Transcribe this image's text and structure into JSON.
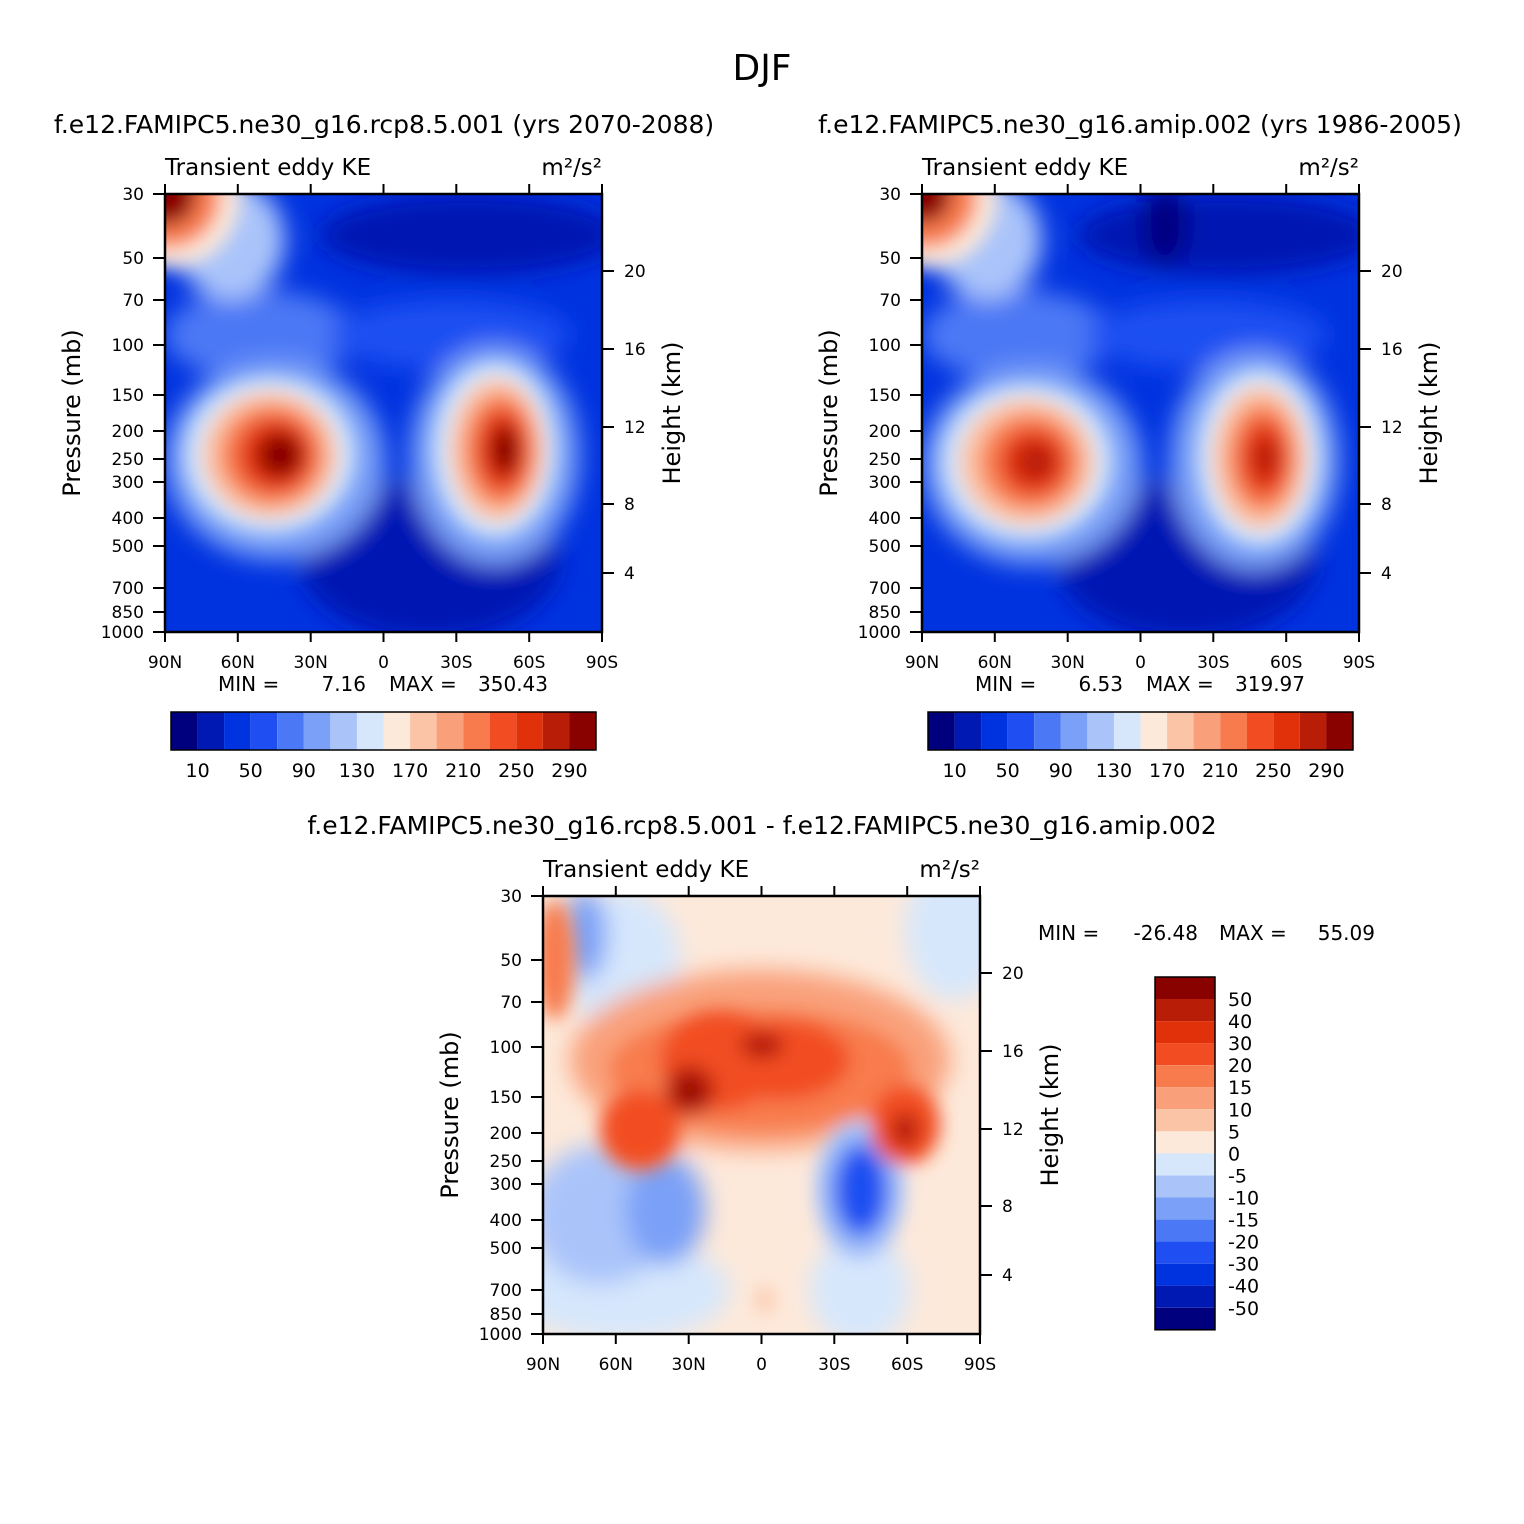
{
  "figure": {
    "title": "DJF"
  },
  "chart_data": [
    {
      "type": "heatmap",
      "title": "f.e12.FAMIPC5.ne30_g16.rcp8.5.001 (yrs 2070-2088)",
      "subtitle": "Transient eddy KE",
      "units": "m²/s²",
      "xlabel": "",
      "ylabel": "Pressure (mb)",
      "ylabel_right": "Height (km)",
      "x_ticks": [
        "90N",
        "60N",
        "30N",
        "0",
        "30S",
        "60S",
        "90S"
      ],
      "x_range": [
        90,
        -90
      ],
      "y_ticks": [
        "30",
        "50",
        "70",
        "100",
        "150",
        "200",
        "250",
        "300",
        "400",
        "500",
        "700",
        "850",
        "1000"
      ],
      "y_range": [
        1000,
        30
      ],
      "y_scale": "log",
      "y_right_ticks": [
        "20",
        "16",
        "12",
        "8",
        "4"
      ],
      "stats": {
        "min": "7.16",
        "max": "350.43"
      },
      "colorbar_labels": [
        "10",
        "50",
        "90",
        "130",
        "170",
        "210",
        "250",
        "290"
      ],
      "colors": [
        "#00007f",
        "#0019b3",
        "#0033e0",
        "#1f4ff2",
        "#4b78f5",
        "#7aa0f7",
        "#aac4fa",
        "#d6e7fc",
        "#fde9da",
        "#fbc4a6",
        "#f9a07a",
        "#f87b4e",
        "#f24d22",
        "#e0310b",
        "#b81d07",
        "#8a0200"
      ],
      "features": [
        {
          "lat": 40,
          "p": 260,
          "value": 340
        },
        {
          "lat": -50,
          "p": 240,
          "value": 330
        },
        {
          "lat": 88,
          "p": 30,
          "value": 320
        }
      ]
    },
    {
      "type": "heatmap",
      "title": "f.e12.FAMIPC5.ne30_g16.amip.002 (yrs 1986-2005)",
      "subtitle": "Transient eddy KE",
      "units": "m²/s²",
      "xlabel": "",
      "ylabel": "Pressure (mb)",
      "ylabel_right": "Height (km)",
      "x_ticks": [
        "90N",
        "60N",
        "30N",
        "0",
        "30S",
        "60S",
        "90S"
      ],
      "x_range": [
        90,
        -90
      ],
      "y_ticks": [
        "30",
        "50",
        "70",
        "100",
        "150",
        "200",
        "250",
        "300",
        "400",
        "500",
        "700",
        "850",
        "1000"
      ],
      "y_range": [
        1000,
        30
      ],
      "y_scale": "log",
      "y_right_ticks": [
        "20",
        "16",
        "12",
        "8",
        "4"
      ],
      "stats": {
        "min": "6.53",
        "max": "319.97"
      },
      "colorbar_labels": [
        "10",
        "50",
        "90",
        "130",
        "170",
        "210",
        "250",
        "290"
      ],
      "colors": [
        "#00007f",
        "#0019b3",
        "#0033e0",
        "#1f4ff2",
        "#4b78f5",
        "#7aa0f7",
        "#aac4fa",
        "#d6e7fc",
        "#fde9da",
        "#fbc4a6",
        "#f9a07a",
        "#f87b4e",
        "#f24d22",
        "#e0310b",
        "#b81d07",
        "#8a0200"
      ],
      "features": [
        {
          "lat": 42,
          "p": 270,
          "value": 310
        },
        {
          "lat": -52,
          "p": 260,
          "value": 300
        },
        {
          "lat": 88,
          "p": 30,
          "value": 300
        }
      ]
    },
    {
      "type": "heatmap",
      "title": "f.e12.FAMIPC5.ne30_g16.rcp8.5.001 - f.e12.FAMIPC5.ne30_g16.amip.002",
      "subtitle": "Transient eddy KE",
      "units": "m²/s²",
      "xlabel": "",
      "ylabel": "Pressure (mb)",
      "ylabel_right": "Height (km)",
      "x_ticks": [
        "90N",
        "60N",
        "30N",
        "0",
        "30S",
        "60S",
        "90S"
      ],
      "x_range": [
        90,
        -90
      ],
      "y_ticks": [
        "30",
        "50",
        "70",
        "100",
        "150",
        "200",
        "250",
        "300",
        "400",
        "500",
        "700",
        "850",
        "1000"
      ],
      "y_range": [
        1000,
        30
      ],
      "y_scale": "log",
      "y_right_ticks": [
        "20",
        "16",
        "12",
        "8",
        "4"
      ],
      "stats": {
        "min": "-26.48",
        "max": "55.09"
      },
      "colorbar_labels": [
        "50",
        "40",
        "30",
        "20",
        "15",
        "10",
        "5",
        "0",
        "-5",
        "-10",
        "-15",
        "-20",
        "-30",
        "-40",
        "-50"
      ],
      "colors": [
        "#8a0200",
        "#b81d07",
        "#e0310b",
        "#f24d22",
        "#f87b4e",
        "#f9a07a",
        "#fbc4a6",
        "#fde9da",
        "#d6e7fc",
        "#aac4fa",
        "#7aa0f7",
        "#4b78f5",
        "#1f4ff2",
        "#0033e0",
        "#0019b3",
        "#00007f"
      ],
      "features": [
        {
          "lat": 30,
          "p": 140,
          "value": 50
        },
        {
          "lat": 0,
          "p": 100,
          "value": 42
        },
        {
          "lat": -45,
          "p": 320,
          "value": -25
        },
        {
          "lat": -60,
          "p": 190,
          "value": 40
        }
      ]
    }
  ]
}
